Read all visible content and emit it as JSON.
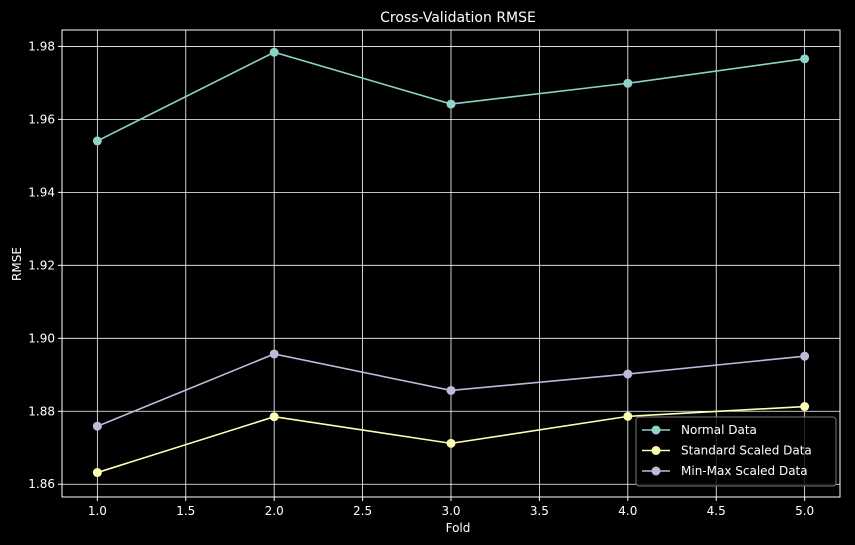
{
  "chart_data": {
    "type": "line",
    "title": "Cross-Validation RMSE",
    "xlabel": "Fold",
    "ylabel": "RMSE",
    "x": [
      1,
      2,
      3,
      4,
      5
    ],
    "xlim": [
      0.8,
      5.2
    ],
    "ylim": [
      1.8565,
      1.9845
    ],
    "xticks": [
      1.0,
      1.5,
      2.0,
      2.5,
      3.0,
      3.5,
      4.0,
      4.5,
      5.0
    ],
    "xtick_labels": [
      "1.0",
      "1.5",
      "2.0",
      "2.5",
      "3.0",
      "3.5",
      "4.0",
      "4.5",
      "5.0"
    ],
    "yticks": [
      1.86,
      1.88,
      1.9,
      1.92,
      1.94,
      1.96,
      1.98
    ],
    "ytick_labels": [
      "1.86",
      "1.88",
      "1.90",
      "1.92",
      "1.94",
      "1.96",
      "1.98"
    ],
    "grid": true,
    "legend_position": "lower-right",
    "series": [
      {
        "name": "Normal Data",
        "color": "#8dd3c7",
        "values": [
          1.9541,
          1.9784,
          1.9642,
          1.9699,
          1.9766
        ]
      },
      {
        "name": "Standard Scaled Data",
        "color": "#ffffb3",
        "values": [
          1.8632,
          1.8785,
          1.8712,
          1.8786,
          1.8813
        ]
      },
      {
        "name": "Min-Max Scaled Data",
        "color": "#bebada",
        "values": [
          1.8759,
          1.8957,
          1.8857,
          1.8902,
          1.8951
        ]
      }
    ]
  }
}
